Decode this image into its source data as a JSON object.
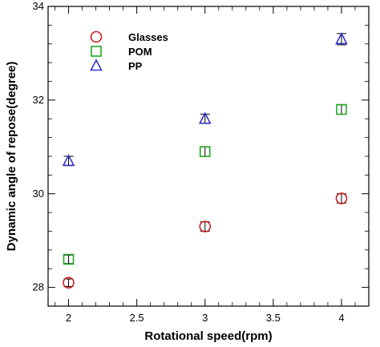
{
  "chart_data": {
    "type": "scatter",
    "xlabel": "Rotational speed(rpm)",
    "ylabel": "Dynamic angle of repose(degree)",
    "xlim": [
      1.85,
      4.2
    ],
    "ylim": [
      27.6,
      34
    ],
    "xticks": [
      2,
      2.5,
      3,
      3.5,
      4
    ],
    "xtick_labels": [
      "2",
      "2.5",
      "3",
      "3.5",
      "4"
    ],
    "yticks": [
      28,
      30,
      32,
      34
    ],
    "ytick_labels": [
      "28",
      "30",
      "32",
      "34"
    ],
    "grid": false,
    "legend_position": "top-left",
    "series": [
      {
        "name": "Glasses",
        "marker": "circle",
        "color": "#cc2222",
        "x": [
          2,
          3,
          4
        ],
        "y": [
          28.1,
          29.3,
          29.9
        ],
        "err": [
          0.08,
          0.1,
          0.1
        ]
      },
      {
        "name": "POM",
        "marker": "square",
        "color": "#22aa22",
        "x": [
          2,
          3,
          4
        ],
        "y": [
          28.6,
          30.9,
          31.8
        ],
        "err": [
          0.09,
          0.1,
          0.1
        ]
      },
      {
        "name": "PP",
        "marker": "triangle",
        "color": "#3333cc",
        "x": [
          2,
          3,
          4
        ],
        "y": [
          30.7,
          31.6,
          33.3
        ],
        "err": [
          0.1,
          0.1,
          0.12
        ]
      }
    ]
  }
}
